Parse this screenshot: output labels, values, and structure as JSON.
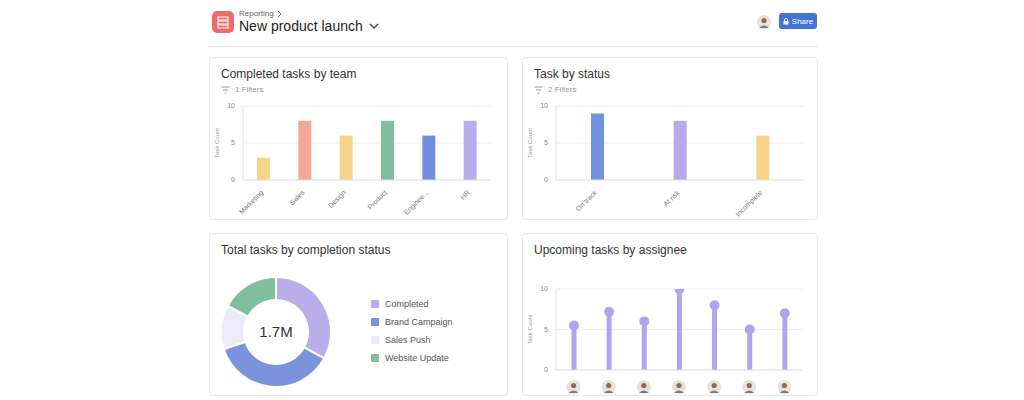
{
  "header": {
    "breadcrumb": "Reporting",
    "title": "New product launch",
    "button": "Share"
  },
  "chart_data": [
    {
      "type": "bar",
      "title": "Completed tasks by team",
      "subtitle": "1 Filters",
      "ylabel": "Task Count",
      "categories": [
        "Marketing",
        "Sales",
        "Design",
        "Product",
        "Enginee...",
        "HR"
      ],
      "values": [
        3,
        8,
        6,
        8,
        6,
        8
      ],
      "colors": [
        "#f8d38a",
        "#f2a896",
        "#f8d38a",
        "#7fbf9f",
        "#6f8fdc",
        "#b9aeea"
      ],
      "ylim": [
        0,
        10
      ],
      "yticks": [
        0,
        5,
        10
      ],
      "grid": true
    },
    {
      "type": "bar",
      "title": "Task by status",
      "subtitle": "2 Filters",
      "ylabel": "Task Count",
      "categories": [
        "On track",
        "At risk",
        "Incomplete"
      ],
      "values": [
        9,
        8,
        6
      ],
      "colors": [
        "#6f93e0",
        "#b6aaeb",
        "#f8d38a"
      ],
      "ylim": [
        0,
        10
      ],
      "yticks": [
        0,
        5,
        10
      ],
      "grid": true
    },
    {
      "type": "donut",
      "title": "Total tasks by completion status",
      "categories": [
        "Completed",
        "Brand Campaign",
        "Sales Push",
        "Website Update"
      ],
      "values": [
        560000,
        630000,
        220000,
        290000
      ],
      "colors": [
        "#b9aeea",
        "#7b93dc",
        "#ecebf7",
        "#7fbf9f"
      ],
      "total": {
        "value": 1700000,
        "label": "1.7M"
      },
      "legend": "right"
    },
    {
      "type": "bar",
      "title": "Upcoming tasks by assignee",
      "ylabel": "Task Count",
      "categories": [
        null,
        null,
        null,
        null,
        null,
        null,
        null
      ],
      "values": [
        5.5,
        7.2,
        6,
        10,
        8,
        5,
        7
      ],
      "color": "#b0a4ec",
      "marker": "circle",
      "ylim": [
        0,
        10
      ],
      "yticks": [
        0,
        5,
        10
      ],
      "grid": true
    }
  ]
}
